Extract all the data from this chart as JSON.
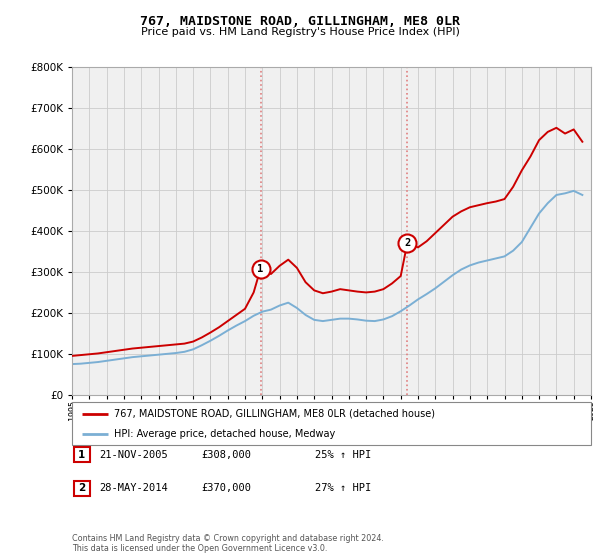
{
  "title": "767, MAIDSTONE ROAD, GILLINGHAM, ME8 0LR",
  "subtitle": "Price paid vs. HM Land Registry's House Price Index (HPI)",
  "legend_line1": "767, MAIDSTONE ROAD, GILLINGHAM, ME8 0LR (detached house)",
  "legend_line2": "HPI: Average price, detached house, Medway",
  "transaction1_label": "1",
  "transaction1_date": "21-NOV-2005",
  "transaction1_price": "£308,000",
  "transaction1_hpi": "25% ↑ HPI",
  "transaction1_year": 2005.9,
  "transaction1_value": 308000,
  "transaction2_label": "2",
  "transaction2_date": "28-MAY-2014",
  "transaction2_price": "£370,000",
  "transaction2_hpi": "27% ↑ HPI",
  "transaction2_year": 2014.38,
  "transaction2_value": 370000,
  "footer": "Contains HM Land Registry data © Crown copyright and database right 2024.\nThis data is licensed under the Open Government Licence v3.0.",
  "red_color": "#cc0000",
  "blue_color": "#7bafd4",
  "marker_border_color": "#cc0000",
  "dashed_line_color": "#e08080",
  "bg_color": "#f0f0f0",
  "ylim": [
    0,
    800000
  ],
  "xlim_start": 1995,
  "xlim_end": 2025,
  "red_years": [
    1995.0,
    1995.5,
    1996.0,
    1996.5,
    1997.0,
    1997.5,
    1998.0,
    1998.5,
    1999.0,
    1999.5,
    2000.0,
    2000.5,
    2001.0,
    2001.5,
    2002.0,
    2002.5,
    2003.0,
    2003.5,
    2004.0,
    2004.5,
    2005.0,
    2005.5,
    2005.9,
    2006.5,
    2007.0,
    2007.5,
    2008.0,
    2008.5,
    2009.0,
    2009.5,
    2010.0,
    2010.5,
    2011.0,
    2011.5,
    2012.0,
    2012.5,
    2013.0,
    2013.5,
    2014.0,
    2014.38,
    2015.0,
    2015.5,
    2016.0,
    2016.5,
    2017.0,
    2017.5,
    2018.0,
    2018.5,
    2019.0,
    2019.5,
    2020.0,
    2020.5,
    2021.0,
    2021.5,
    2022.0,
    2022.5,
    2023.0,
    2023.5,
    2024.0,
    2024.5
  ],
  "red_values": [
    95000,
    97000,
    99000,
    101000,
    104000,
    107000,
    110000,
    113000,
    115000,
    117000,
    119000,
    121000,
    123000,
    125000,
    130000,
    140000,
    152000,
    165000,
    180000,
    195000,
    210000,
    250000,
    308000,
    295000,
    315000,
    330000,
    310000,
    275000,
    255000,
    248000,
    252000,
    258000,
    255000,
    252000,
    250000,
    252000,
    258000,
    272000,
    290000,
    370000,
    360000,
    375000,
    395000,
    415000,
    435000,
    448000,
    458000,
    463000,
    468000,
    472000,
    478000,
    508000,
    548000,
    582000,
    622000,
    642000,
    652000,
    638000,
    648000,
    618000
  ],
  "blue_years": [
    1995.0,
    1995.5,
    1996.0,
    1996.5,
    1997.0,
    1997.5,
    1998.0,
    1998.5,
    1999.0,
    1999.5,
    2000.0,
    2000.5,
    2001.0,
    2001.5,
    2002.0,
    2002.5,
    2003.0,
    2003.5,
    2004.0,
    2004.5,
    2005.0,
    2005.5,
    2006.0,
    2006.5,
    2007.0,
    2007.5,
    2008.0,
    2008.5,
    2009.0,
    2009.5,
    2010.0,
    2010.5,
    2011.0,
    2011.5,
    2012.0,
    2012.5,
    2013.0,
    2013.5,
    2014.0,
    2014.5,
    2015.0,
    2015.5,
    2016.0,
    2016.5,
    2017.0,
    2017.5,
    2018.0,
    2018.5,
    2019.0,
    2019.5,
    2020.0,
    2020.5,
    2021.0,
    2021.5,
    2022.0,
    2022.5,
    2023.0,
    2023.5,
    2024.0,
    2024.5
  ],
  "blue_values": [
    75000,
    76000,
    78000,
    80000,
    83000,
    86000,
    89000,
    92000,
    94000,
    96000,
    98000,
    100000,
    102000,
    105000,
    111000,
    121000,
    132000,
    144000,
    157000,
    169000,
    180000,
    193000,
    203000,
    208000,
    218000,
    225000,
    212000,
    195000,
    183000,
    180000,
    183000,
    186000,
    186000,
    184000,
    181000,
    180000,
    184000,
    192000,
    204000,
    218000,
    233000,
    246000,
    260000,
    276000,
    292000,
    306000,
    316000,
    323000,
    328000,
    333000,
    338000,
    352000,
    373000,
    408000,
    443000,
    468000,
    488000,
    492000,
    498000,
    488000
  ]
}
